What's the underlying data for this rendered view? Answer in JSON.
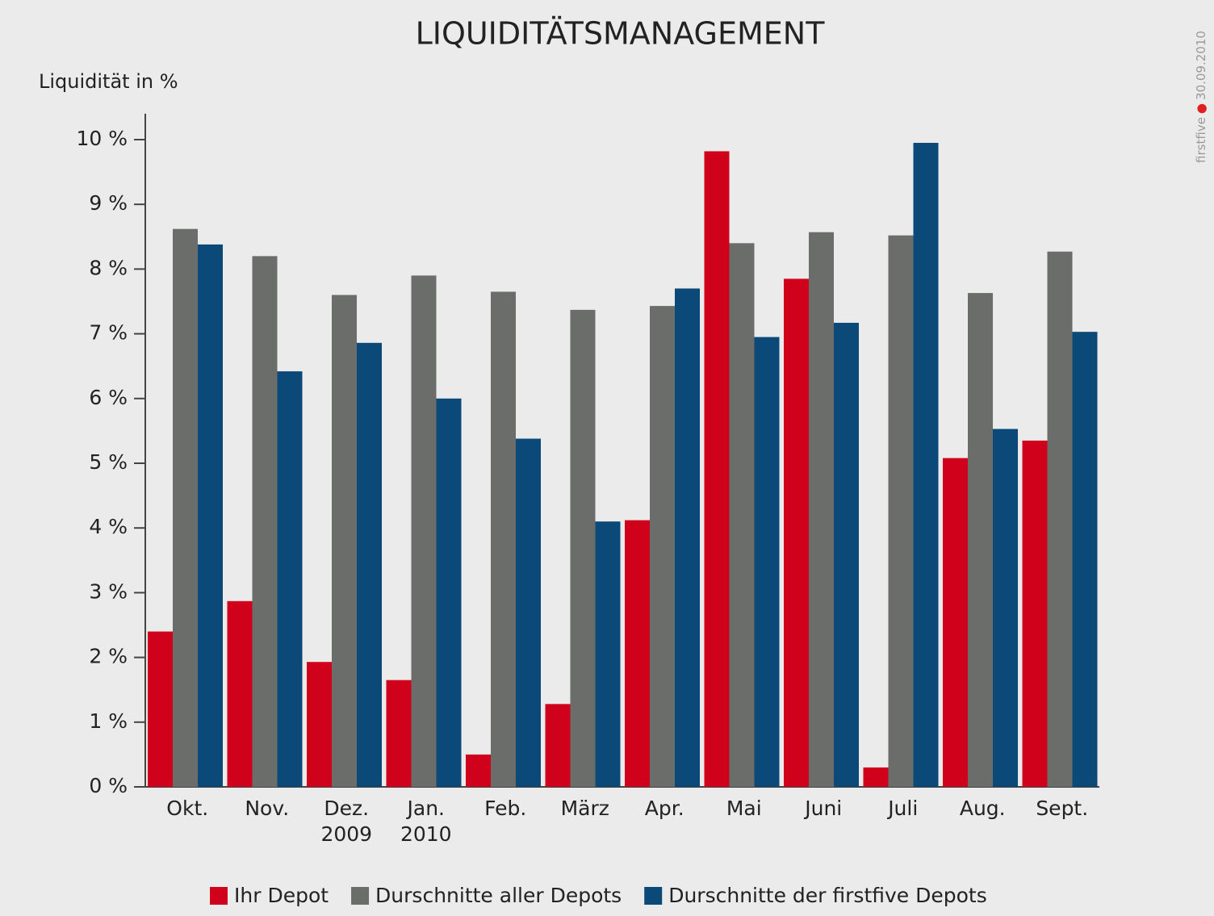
{
  "chart_data": {
    "type": "bar",
    "title": "LIQUIDITÄTSMANAGEMENT",
    "y_label": "Liquidität in %",
    "watermark": "firstfive",
    "date": "30.09.2010",
    "categories": [
      "Okt.",
      "Nov.",
      "Dez. 2009",
      "Jan. 2010",
      "Feb.",
      "März",
      "Apr.",
      "Mai",
      "Juni",
      "Juli",
      "Aug.",
      "Sept."
    ],
    "series": [
      {
        "name": "Ihr Depot",
        "color": "#d0021b",
        "values": [
          2.4,
          2.87,
          1.93,
          1.65,
          0.5,
          1.28,
          4.12,
          9.82,
          7.85,
          0.3,
          5.08,
          5.35
        ]
      },
      {
        "name": "Durschnitte aller Depots",
        "color": "#6b6d6a",
        "values": [
          8.62,
          8.2,
          7.6,
          7.9,
          7.65,
          7.37,
          7.43,
          8.4,
          8.57,
          8.52,
          7.63,
          8.27
        ]
      },
      {
        "name": "Durschnitte der firstfive Depots",
        "color": "#0b4a78",
        "values": [
          8.38,
          6.42,
          6.86,
          6.0,
          5.38,
          4.1,
          7.7,
          6.95,
          7.17,
          9.95,
          5.53,
          7.03
        ]
      }
    ],
    "ylim": [
      0,
      10.4
    ],
    "yticks": [
      {
        "value": 0,
        "label": "0 %"
      },
      {
        "value": 1,
        "label": "1 %"
      },
      {
        "value": 2,
        "label": "2 %"
      },
      {
        "value": 3,
        "label": "3 %"
      },
      {
        "value": 4,
        "label": "4 %"
      },
      {
        "value": 5,
        "label": "5 %"
      },
      {
        "value": 6,
        "label": "6 %"
      },
      {
        "value": 7,
        "label": "7 %"
      },
      {
        "value": 8,
        "label": "8 %"
      },
      {
        "value": 9,
        "label": "9 %"
      },
      {
        "value": 10,
        "label": "10 %"
      }
    ],
    "legend": "bottom"
  }
}
